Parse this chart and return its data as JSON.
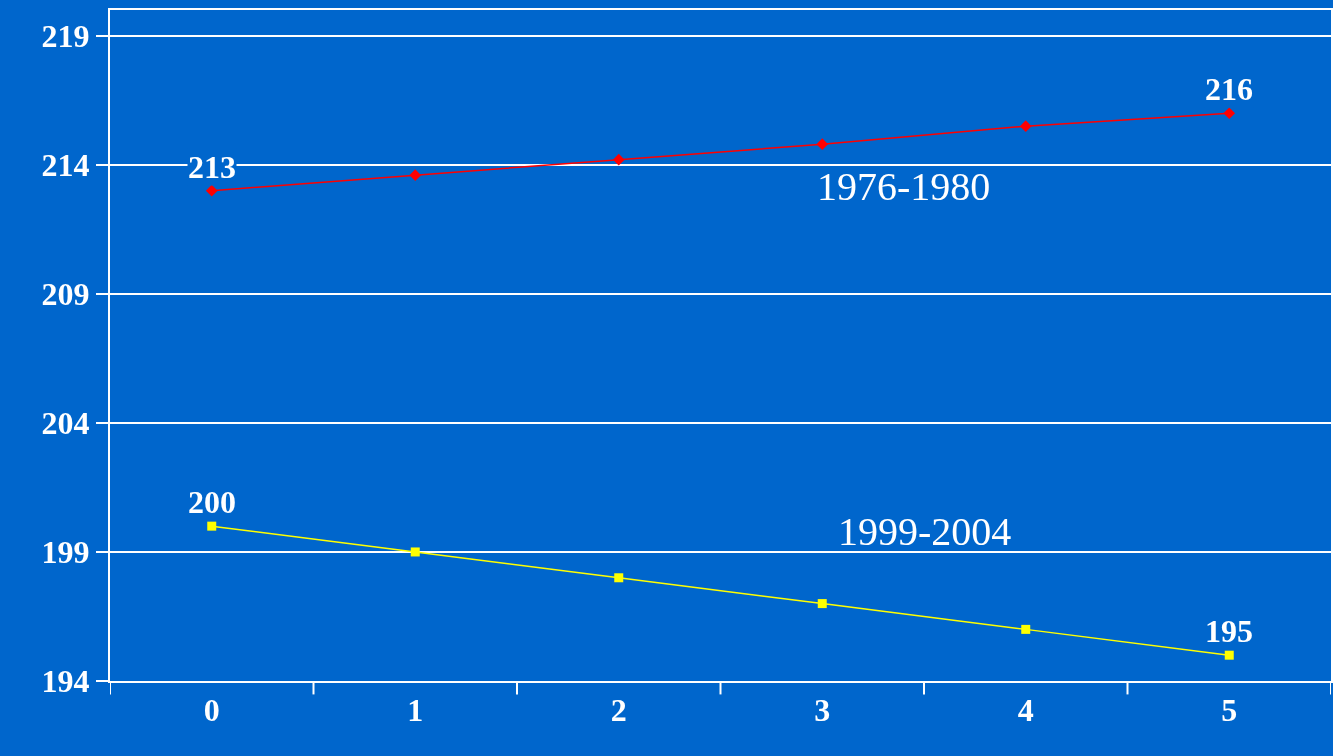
{
  "chart_data": {
    "type": "line",
    "categories": [
      "0",
      "1",
      "2",
      "3",
      "4",
      "5"
    ],
    "series": [
      {
        "name": "1976-1980",
        "color": "#ff0000",
        "marker": "diamond",
        "values": [
          213,
          213.6,
          214.2,
          214.8,
          215.5,
          216
        ],
        "value_labels": [
          "213",
          null,
          null,
          null,
          null,
          "216"
        ]
      },
      {
        "name": "1999-2004",
        "color": "#ffff00",
        "marker": "square",
        "values": [
          200,
          199,
          198,
          197,
          196,
          195
        ],
        "value_labels": [
          "200",
          null,
          null,
          null,
          null,
          "195"
        ]
      }
    ],
    "ylim": [
      194,
      220
    ],
    "yticks": [
      194,
      199,
      204,
      209,
      214,
      219
    ],
    "grid": "y",
    "legend": false
  }
}
